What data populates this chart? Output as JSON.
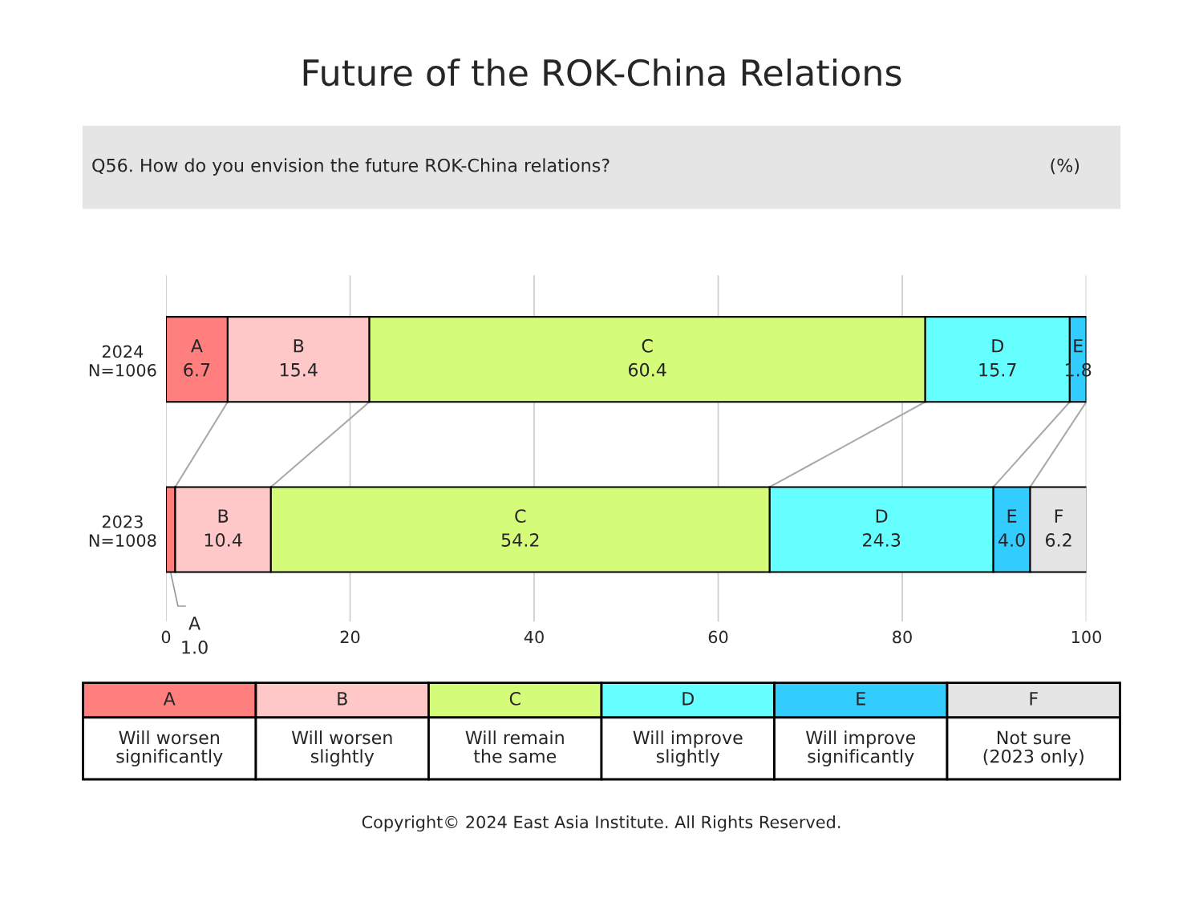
{
  "chart_data": {
    "type": "bar",
    "orientation": "horizontal",
    "stacked": true,
    "title": "Future of the ROK-China Relations",
    "subtitle": "Q56. How do you envision the future ROK-China relations?",
    "categories": [
      "2024\nN=1006",
      "2023\nN=1008"
    ],
    "series": [
      {
        "name": "A",
        "color": "#ff7f7f",
        "values": [
          6.7,
          1.0
        ],
        "value_labels": [
          "A\n6.7",
          "A\n1.0"
        ]
      },
      {
        "name": "B",
        "color": "#ffc8c8",
        "values": [
          15.4,
          10.4
        ],
        "value_labels": [
          "B\n15.4",
          "B\n10.4"
        ]
      },
      {
        "name": "C",
        "color": "#d5fc79",
        "values": [
          60.4,
          54.2
        ],
        "value_labels": [
          "C\n60.4",
          "C\n54.2"
        ]
      },
      {
        "name": "D",
        "color": "#66ffff",
        "values": [
          15.7,
          24.3
        ],
        "value_labels": [
          "D\n15.7",
          "D\n24.3"
        ]
      },
      {
        "name": "E",
        "color": "#33ccff",
        "values": [
          1.8,
          4.0
        ],
        "value_labels": [
          "E\n1.8",
          "E\n4.0"
        ]
      },
      {
        "name": "F",
        "color": "#e5e5e5",
        "values": [
          null,
          6.2
        ],
        "value_labels": [
          null,
          "F\n6.2"
        ]
      }
    ],
    "xlim": [
      0,
      100
    ],
    "xticks": [
      0,
      20,
      40,
      60,
      80,
      100
    ],
    "grid": "x",
    "legend": "bottom",
    "annotations": [
      "(%)",
      "Will worsen\nsignificantly",
      "Will worsen\nslightly",
      "Will remain\nthe same",
      "Will improve\nslightly",
      "Will improve\nsignificantly",
      "Not sure\n(2023 only)",
      "Copyright© 2024 East Asia Institute. All Rights Reserved."
    ]
  }
}
